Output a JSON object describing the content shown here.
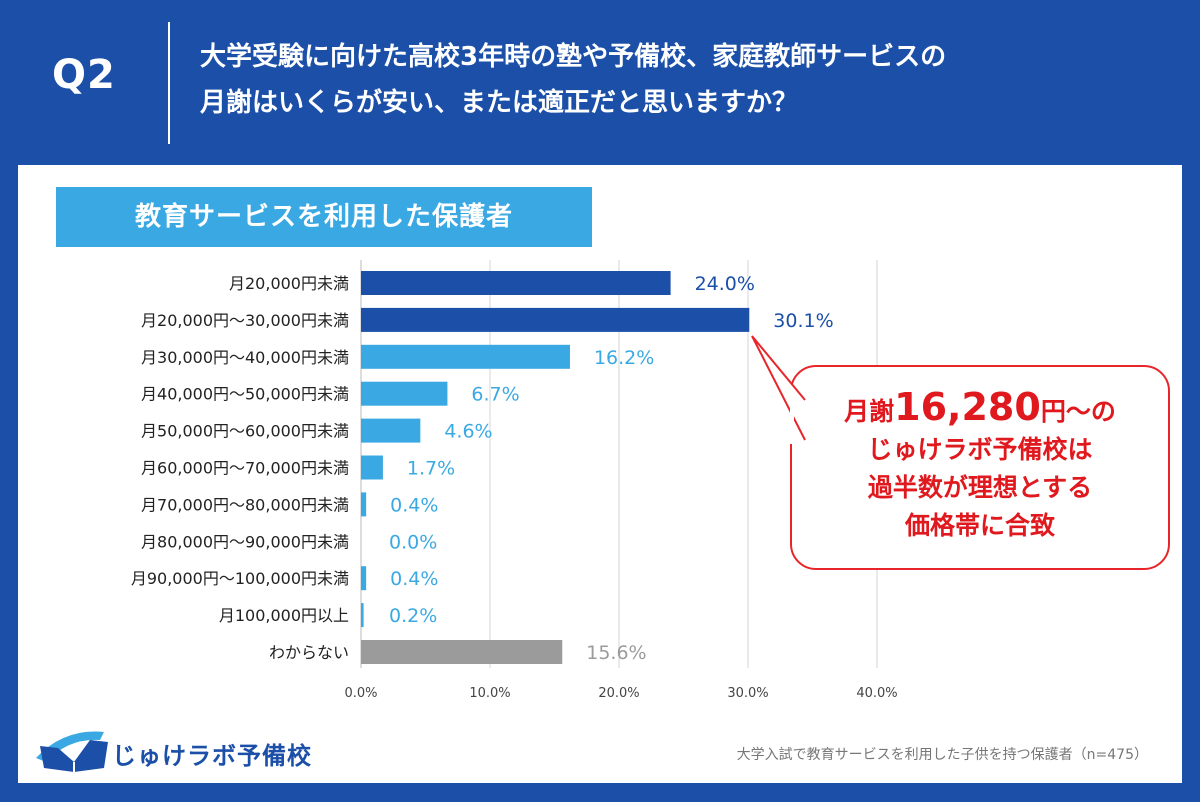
{
  "header": {
    "q_label": "Q2",
    "question_line1": "大学受験に向けた高校3年時の塾や予備校、家庭教師サービスの",
    "question_line2": "月謝はいくらが安い、または適正だと思いますか？"
  },
  "group_label": "教育サービスを利用した保護者",
  "callout": {
    "line1_pre": "月謝",
    "line1_big": "16,280",
    "line1_post": "円～の",
    "line2": "じゅけラボ予備校は",
    "line3": "過半数が理想とする",
    "line4": "価格帯に合致"
  },
  "logo_text": "じゅけラボ予備校",
  "footnote": "大学入試で教育サービスを利用した子供を持つ保護者（n=475）",
  "colors": {
    "background": "#1b4fa8",
    "bar_dark": "#1b4fa8",
    "bar_light": "#3aa9e3",
    "bar_gray": "#9b9b9b",
    "callout_red": "#e0191e"
  },
  "chart_data": {
    "type": "bar",
    "orientation": "horizontal",
    "categories": [
      "月20,000円未満",
      "月20,000円～30,000円未満",
      "月30,000円～40,000円未満",
      "月40,000円～50,000円未満",
      "月50,000円～60,000円未満",
      "月60,000円～70,000円未満",
      "月70,000円～80,000円未満",
      "月80,000円～90,000円未満",
      "月90,000円～100,000円未満",
      "月100,000円以上",
      "わからない"
    ],
    "values": [
      24.0,
      30.1,
      16.2,
      6.7,
      4.6,
      1.7,
      0.4,
      0.0,
      0.4,
      0.2,
      15.6
    ],
    "value_labels": [
      "24.0%",
      "30.1%",
      "16.2%",
      "6.7%",
      "4.6%",
      "1.7%",
      "0.4%",
      "0.0%",
      "0.4%",
      "0.2%",
      "15.6%"
    ],
    "bar_color_keys": [
      "dark",
      "dark",
      "light",
      "light",
      "light",
      "light",
      "light",
      "light",
      "light",
      "light",
      "gray"
    ],
    "xlim": [
      0,
      40
    ],
    "xticks": [
      0,
      10,
      20,
      30,
      40
    ],
    "xtick_labels": [
      "0.0%",
      "10.0%",
      "20.0%",
      "30.0%",
      "40.0%"
    ],
    "grid": true
  }
}
